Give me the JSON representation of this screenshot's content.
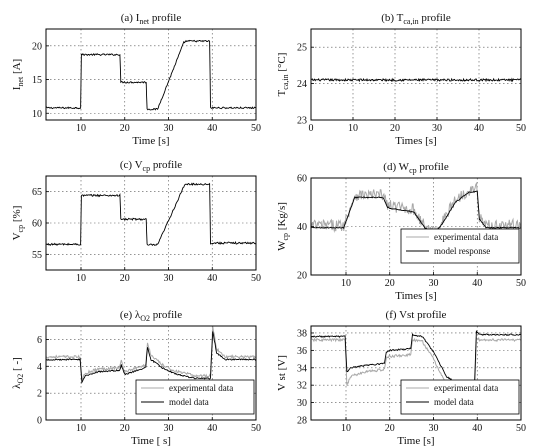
{
  "chart_data": [
    {
      "id": "a",
      "type": "line",
      "title_prefix": "(a) I",
      "title_sub": "net",
      "title_suffix": " profile",
      "xlabel": "Time [s]",
      "ylabel_main": "I",
      "ylabel_sub": "net",
      "ylabel_suffix": " [A]",
      "xlim": [
        2,
        50
      ],
      "ylim": [
        9,
        22.5
      ],
      "xticks": [
        10,
        20,
        30,
        40,
        50
      ],
      "yticks": [
        10,
        15,
        20
      ],
      "grid": true,
      "legend": [],
      "series": [
        {
          "x": [
            2,
            9.9,
            10.1,
            18.9,
            19.1,
            24.9,
            25.1,
            27.5,
            33.5,
            34,
            39.4,
            39.6,
            50
          ],
          "y": [
            10.8,
            10.8,
            18.7,
            18.7,
            14.6,
            14.6,
            10.6,
            10.6,
            20.5,
            20.7,
            20.7,
            10.8,
            10.8
          ],
          "color": "#000000",
          "noise": 0.12
        }
      ]
    },
    {
      "id": "b",
      "type": "line",
      "title_prefix": "(b) T",
      "title_sub": "ca,in",
      "title_suffix": " profile",
      "xlabel": "Times [s]",
      "ylabel_main": "T",
      "ylabel_sub": "ca,in",
      "ylabel_suffix": " [°C]",
      "xlim": [
        0,
        50
      ],
      "ylim": [
        23,
        25.5
      ],
      "xticks": [
        0,
        10,
        20,
        30,
        40,
        50
      ],
      "yticks": [
        23,
        24,
        25
      ],
      "grid": true,
      "legend": [],
      "series": [
        {
          "x": [
            0,
            50
          ],
          "y": [
            24.1,
            24.1
          ],
          "color": "#000000",
          "noise": 0.03
        }
      ]
    },
    {
      "id": "c",
      "type": "line",
      "title_prefix": "(c) V",
      "title_sub": "cp",
      "title_suffix": " profile",
      "xlabel": "",
      "ylabel_main": "V",
      "ylabel_sub": "cp",
      "ylabel_suffix": " [%]",
      "xlim": [
        2,
        50
      ],
      "ylim": [
        52.5,
        67.5
      ],
      "xticks": [
        10,
        20,
        30,
        40,
        50
      ],
      "yticks": [
        55,
        60,
        65
      ],
      "grid": true,
      "legend": [],
      "series": [
        {
          "x": [
            2,
            9.9,
            10.1,
            18.9,
            19.1,
            24.9,
            25.1,
            27.5,
            33.5,
            34,
            39.4,
            39.6,
            50
          ],
          "y": [
            56.6,
            56.6,
            64.4,
            64.4,
            60.6,
            60.6,
            56.5,
            56.5,
            65.8,
            66.2,
            66.2,
            56.8,
            56.8
          ],
          "color": "#000000",
          "noise": 0.15
        }
      ]
    },
    {
      "id": "d",
      "type": "line",
      "title_prefix": "(d) W",
      "title_sub": "cp",
      "title_suffix": " profile",
      "xlabel": "Times [s]",
      "ylabel_main": "W",
      "ylabel_sub": "cp",
      "ylabel_suffix": " [Kg/s]",
      "xlim": [
        2,
        50
      ],
      "ylim": [
        20,
        60
      ],
      "xticks": [
        10,
        20,
        30,
        40,
        50
      ],
      "yticks": [
        20,
        40,
        60
      ],
      "grid": true,
      "legend": [
        {
          "label": "experimental data",
          "color": "#a8a8a8"
        },
        {
          "label": "model response",
          "color": "#000000"
        }
      ],
      "series": [
        {
          "x": [
            2,
            9.5,
            12,
            18.5,
            19.5,
            20,
            25.5,
            28,
            30,
            32,
            35,
            38,
            40,
            40.5,
            42,
            50
          ],
          "y": [
            40.5,
            40.5,
            53,
            53,
            49,
            48.5,
            47,
            40,
            37.5,
            42,
            51,
            55,
            55.5,
            44,
            40.5,
            40.5
          ],
          "color": "#a8a8a8",
          "noise": 2.4
        },
        {
          "x": [
            2,
            9.5,
            12,
            18.5,
            19.5,
            20,
            25.5,
            28,
            30,
            32,
            35,
            38,
            40,
            40.5,
            42,
            50
          ],
          "y": [
            39.5,
            39.5,
            52,
            52,
            48,
            47.5,
            46,
            39.5,
            37,
            41,
            50,
            54,
            54.5,
            43,
            39.5,
            39.5
          ],
          "color": "#000000",
          "noise": 0.2
        }
      ]
    },
    {
      "id": "e",
      "type": "line",
      "title_prefix": "(e) λ",
      "title_sub": "O2",
      "title_suffix": " profile",
      "xlabel": "Time [ s]",
      "ylabel_main": "λ",
      "ylabel_sub": "O2",
      "ylabel_suffix": "  [ -]",
      "xlim": [
        2,
        50
      ],
      "ylim": [
        0,
        7
      ],
      "xticks": [
        10,
        20,
        30,
        40,
        50
      ],
      "yticks": [
        0,
        2,
        4,
        6
      ],
      "grid": true,
      "legend": [
        {
          "label": "experimental data",
          "color": "#a8a8a8"
        },
        {
          "label": "model data",
          "color": "#000000"
        }
      ],
      "series": [
        {
          "x": [
            2,
            9.8,
            10.2,
            11,
            14,
            18.8,
            19.2,
            20,
            22,
            24.8,
            25.2,
            26,
            29,
            32,
            36,
            39.6,
            40.1,
            41,
            43,
            50
          ],
          "y": [
            4.7,
            4.7,
            3,
            3.5,
            3.8,
            3.9,
            4.4,
            3.6,
            3.8,
            4.1,
            5.8,
            4.8,
            4,
            3.6,
            3.3,
            3.3,
            7,
            5.3,
            4.7,
            4.7
          ],
          "color": "#a8a8a8",
          "noise": 0.1
        },
        {
          "x": [
            2,
            9.8,
            10.2,
            11,
            14,
            18.8,
            19.2,
            20,
            22,
            24.8,
            25.2,
            26,
            29,
            32,
            36,
            39.6,
            40.1,
            41,
            43,
            50
          ],
          "y": [
            4.5,
            4.5,
            2.8,
            3.3,
            3.6,
            3.7,
            4.1,
            3.4,
            3.6,
            3.9,
            5.4,
            4.5,
            3.8,
            3.4,
            3.1,
            3.1,
            6.6,
            5,
            4.5,
            4.5
          ],
          "color": "#000000",
          "noise": 0.05
        }
      ]
    },
    {
      "id": "f",
      "type": "line",
      "title_prefix": "(f) Vst profile",
      "title_sub": "",
      "title_suffix": "",
      "xlabel": "Time [s]",
      "ylabel_main": "V st [V]",
      "ylabel_sub": "",
      "ylabel_suffix": "",
      "xlim": [
        2,
        50
      ],
      "ylim": [
        28,
        38.8
      ],
      "xticks": [
        10,
        20,
        30,
        40,
        50
      ],
      "yticks": [
        28,
        30,
        32,
        34,
        36,
        38
      ],
      "grid": true,
      "legend": [
        {
          "label": "experimental data",
          "color": "#a8a8a8"
        },
        {
          "label": "model data",
          "color": "#000000"
        }
      ],
      "series": [
        {
          "x": [
            2,
            9.8,
            10.2,
            11,
            15,
            18.8,
            19.2,
            20,
            24.8,
            25.2,
            27.5,
            30,
            33,
            35,
            39.4,
            39.8,
            40.5,
            50
          ],
          "y": [
            37.2,
            37.2,
            32,
            33,
            33.6,
            33.8,
            35.1,
            35.3,
            35.5,
            37.2,
            37,
            35,
            32,
            31.3,
            31.4,
            37.5,
            37.2,
            37.2
          ],
          "color": "#a8a8a8",
          "noise": 0.15
        },
        {
          "x": [
            2,
            9.8,
            10.2,
            11,
            15,
            18.8,
            19.2,
            20,
            24.8,
            25.2,
            27.5,
            30,
            33,
            35,
            39.4,
            39.8,
            40.5,
            50
          ],
          "y": [
            37.6,
            37.6,
            33.5,
            34,
            34.3,
            34.5,
            35.8,
            36,
            36.2,
            37.8,
            37.6,
            35.8,
            33,
            32.3,
            32.4,
            38.2,
            37.8,
            37.8
          ],
          "color": "#000000",
          "noise": 0.08
        }
      ]
    }
  ]
}
